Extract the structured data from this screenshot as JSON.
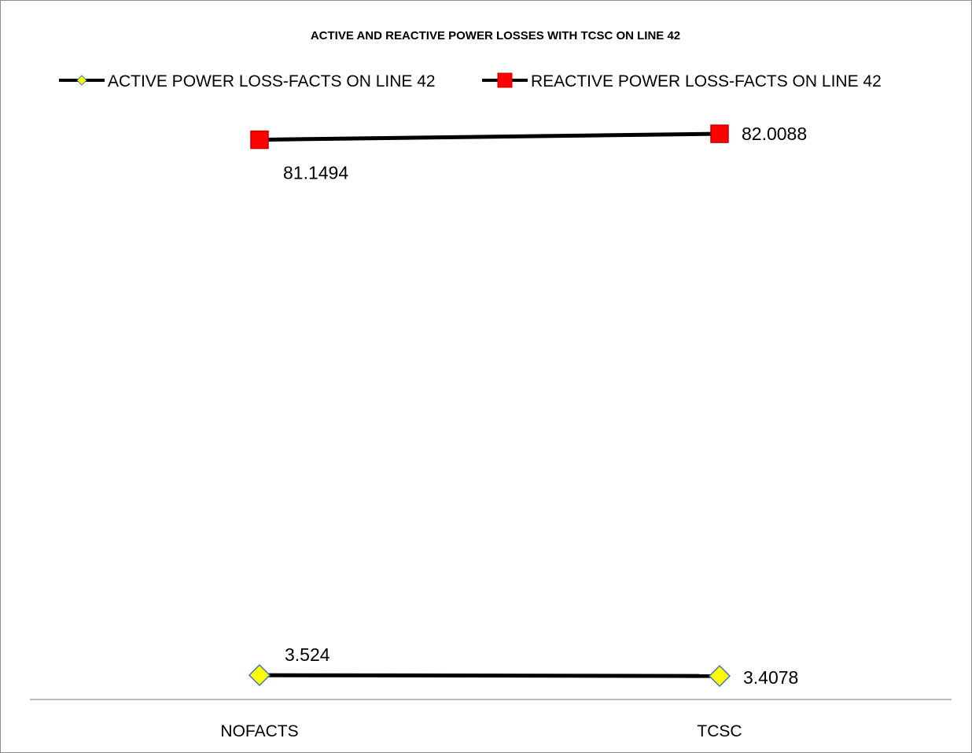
{
  "chart_data": {
    "type": "line",
    "title": "ACTIVE AND REACTIVE POWER LOSSES WITH TCSC ON LINE 42",
    "categories": [
      "NOFACTS",
      "TCSC"
    ],
    "series": [
      {
        "name": "ACTIVE POWER LOSS-FACTS ON LINE 42",
        "values": [
          3.524,
          3.4078
        ],
        "labels": [
          "3.524",
          "3.4078"
        ],
        "marker": "diamond",
        "line_color": "#000000",
        "marker_fill": "#ffff00",
        "marker_stroke": "#4472c4"
      },
      {
        "name": "REACTIVE POWER LOSS-FACTS ON LINE 42",
        "values": [
          81.1494,
          82.0088
        ],
        "labels": [
          "81.1494",
          "82.0088"
        ],
        "marker": "square",
        "line_color": "#000000",
        "marker_fill": "#ff0000",
        "marker_stroke": "#c00000"
      }
    ],
    "ylim": [
      0,
      90
    ],
    "legend_position": "top",
    "grid": false,
    "y_axis_visible": false
  }
}
